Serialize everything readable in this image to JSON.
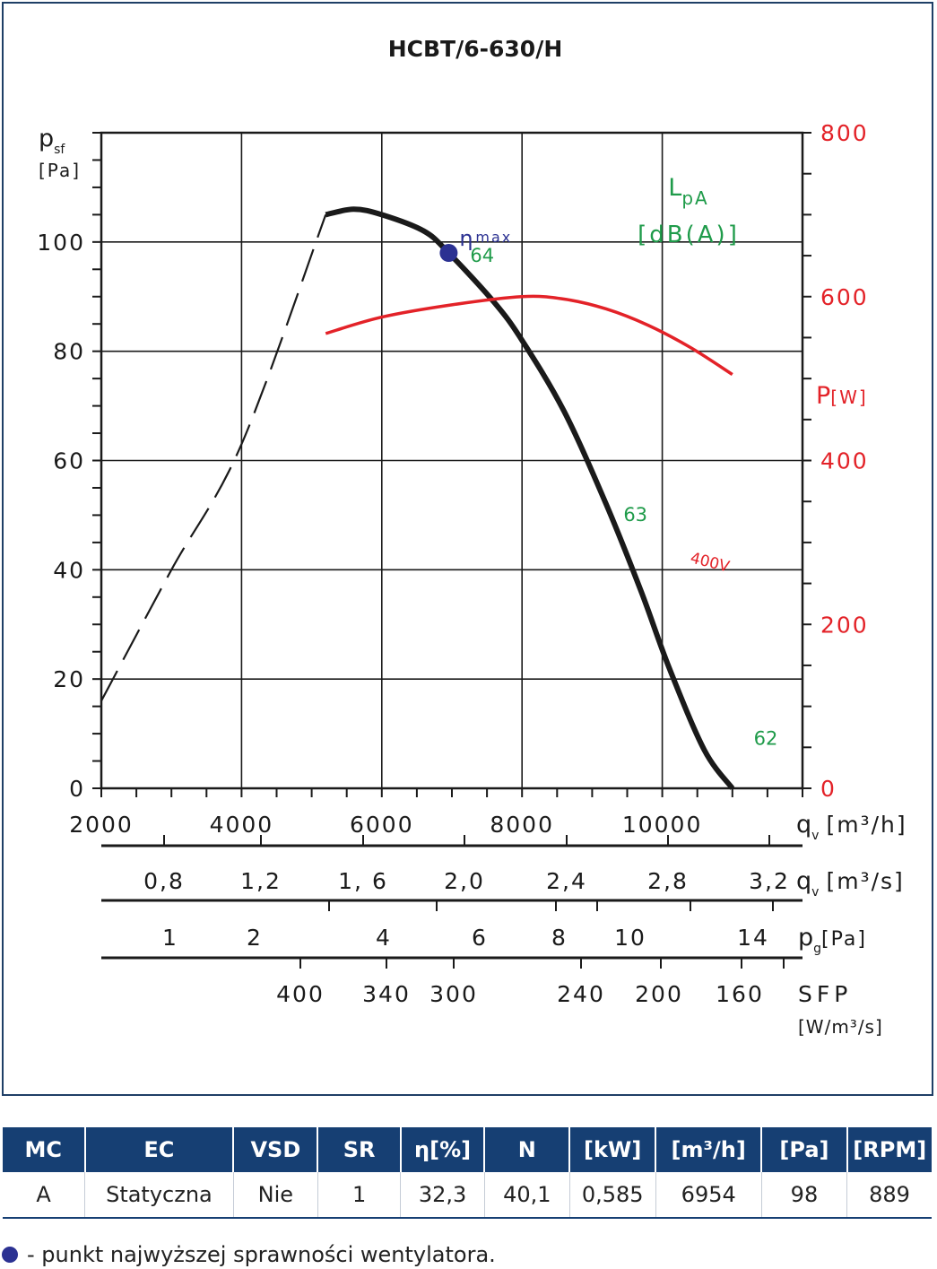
{
  "colors": {
    "frame": "#1f3f66",
    "grid": "#1a1a1a",
    "pressure_curve": "#1a1a1a",
    "power_curve": "#e32228",
    "noise_labels": "#1f9b4a",
    "efficiency_point": "#2b3192",
    "table_header_bg": "#163f73",
    "table_header_text": "#ffffff"
  },
  "chart_data": {
    "type": "line",
    "title": "HCBT/6-630/H",
    "grid": true,
    "x": {
      "label_main": "q",
      "label_sub": "v",
      "label_unit": "[m³/h]",
      "range": [
        2000,
        12000
      ],
      "ticks": [
        2000,
        4000,
        6000,
        8000,
        10000
      ],
      "tick_labels": [
        "2000",
        "4000",
        "6000",
        "8000",
        "10000"
      ]
    },
    "y_left": {
      "label_main": "p",
      "label_sub": "sf",
      "label_unit": "[Pa]",
      "range": [
        0,
        120
      ],
      "ticks": [
        0,
        20,
        40,
        60,
        80,
        100
      ],
      "tick_labels": [
        "0",
        "20",
        "40",
        "60",
        "80",
        "100"
      ]
    },
    "y_right": {
      "label_main": "P",
      "label_unit": "[W]",
      "range": [
        0,
        800
      ],
      "ticks": [
        0,
        200,
        400,
        600,
        800
      ],
      "tick_labels": [
        "0",
        "200",
        "400",
        "600",
        "800"
      ]
    },
    "series": [
      {
        "kind": "pressure-unstable",
        "style": "dashed",
        "points": [
          [
            2000,
            16
          ],
          [
            3000,
            40
          ],
          [
            4000,
            63
          ],
          [
            5200,
            105
          ]
        ]
      },
      {
        "kind": "pressure-stable",
        "style": "solid",
        "points": [
          [
            5200,
            105
          ],
          [
            5600,
            106
          ],
          [
            6000,
            105
          ],
          [
            6600,
            102
          ],
          [
            6954,
            98
          ],
          [
            7600,
            89
          ],
          [
            8000,
            82
          ],
          [
            8600,
            69
          ],
          [
            9200,
            52
          ],
          [
            9700,
            36
          ],
          [
            10100,
            22
          ],
          [
            10600,
            7
          ],
          [
            11000,
            0
          ]
        ]
      },
      {
        "name": "400V",
        "kind": "power",
        "style": "solid",
        "axis": "right",
        "points": [
          [
            5200,
            555
          ],
          [
            6000,
            575
          ],
          [
            7000,
            590
          ],
          [
            8000,
            600
          ],
          [
            8600,
            597
          ],
          [
            9200,
            585
          ],
          [
            9800,
            565
          ],
          [
            10400,
            538
          ],
          [
            11000,
            505
          ]
        ]
      }
    ],
    "efficiency_point": {
      "x": 6954,
      "y": 98,
      "label": "η",
      "label_sub": "max"
    },
    "noise_title": {
      "main": "L",
      "sub": "pA",
      "unit": "[dB(A)]"
    },
    "noise_labels": [
      {
        "text": "64",
        "x": 6954,
        "y": 98
      },
      {
        "text": "63",
        "x": 9600,
        "y": 52
      },
      {
        "text": "62",
        "x": 11100,
        "y": 4
      }
    ],
    "power_label": "400V",
    "scales": [
      {
        "label": "q",
        "label_sub": "v",
        "unit": "[m³/s]",
        "tick_labels": [
          "0,8",
          "1,2",
          "1, 6",
          "2,0",
          "2,4",
          "2,8",
          "3,2"
        ]
      },
      {
        "label": "p",
        "label_sub": "g",
        "unit": "[Pa]",
        "tick_labels": [
          "1",
          "2",
          "4",
          "6",
          "8",
          "10",
          "14"
        ]
      },
      {
        "label": "SFP",
        "unit": "[W/m³/s]",
        "tick_labels": [
          "400",
          "340",
          "300",
          "240",
          "200",
          "160"
        ]
      }
    ]
  },
  "table": {
    "headers": [
      "MC",
      "EC",
      "VSD",
      "SR",
      "η[%]",
      "N",
      "[kW]",
      "[m³/h]",
      "[Pa]",
      "[RPM]"
    ],
    "row": [
      "A",
      "Statyczna",
      "Nie",
      "1",
      "32,3",
      "40,1",
      "0,585",
      "6954",
      "98",
      "889"
    ]
  },
  "legend_note": {
    "text": "- punkt najwyższej sprawności wentylatora."
  }
}
